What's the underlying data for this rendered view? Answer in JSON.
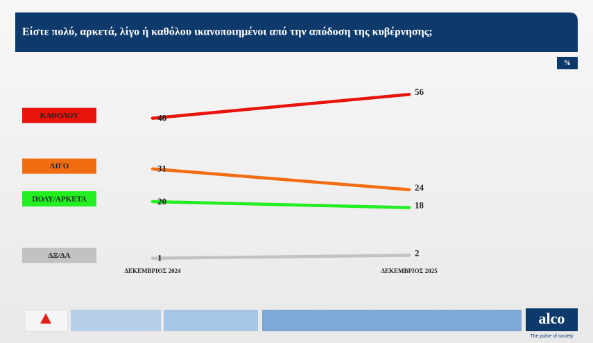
{
  "chart_data": {
    "type": "line",
    "title": "Είστε πολύ, αρκετά, λίγο ή καθόλου ικανοποιημένοι από την απόδοση της κυβέρνησης;",
    "unit_badge": "%",
    "categories": [
      "ΔΕΚΕΜΒΡΙΟΣ 2024",
      "ΔΕΚΕΜΒΡΙΟΣ 2025"
    ],
    "series": [
      {
        "name": "ΚΑΘΟΛΟΥ",
        "color": "#e8140c",
        "values": [
          48,
          56
        ]
      },
      {
        "name": "ΛΙΓΟ",
        "color": "#f26c12",
        "values": [
          31,
          24
        ]
      },
      {
        "name": "ΠΟΛΥ/ΑΡΚΕΤΑ",
        "color": "#22ee22",
        "values": [
          20,
          18
        ]
      },
      {
        "name": "ΔΞ/ΔΑ",
        "color": "#c2c2c2",
        "values": [
          1,
          2
        ]
      }
    ],
    "ylim": [
      0,
      60
    ],
    "brand": "alco",
    "tagline": "The pulse of society"
  }
}
